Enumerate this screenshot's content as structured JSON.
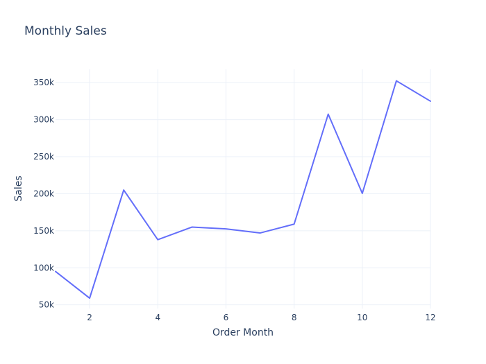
{
  "chart_data": {
    "type": "line",
    "title": "Monthly Sales",
    "xlabel": "Order Month",
    "ylabel": "Sales",
    "xlim": [
      1,
      12
    ],
    "ylim": [
      45000,
      368000
    ],
    "x_ticks": [
      2,
      4,
      6,
      8,
      10,
      12
    ],
    "x_tick_labels": [
      "2",
      "4",
      "6",
      "8",
      "10",
      "12"
    ],
    "y_ticks": [
      50000,
      100000,
      150000,
      200000,
      250000,
      300000,
      350000
    ],
    "y_tick_labels": [
      "50k",
      "100k",
      "150k",
      "200k",
      "250k",
      "300k",
      "350k"
    ],
    "grid": true,
    "legend": false,
    "series": [
      {
        "x": [
          1,
          2,
          3,
          4,
          5,
          6,
          7,
          8,
          9,
          10,
          11,
          12
        ],
        "values": [
          95000,
          59000,
          205000,
          138000,
          155000,
          152500,
          147000,
          159000,
          307500,
          200500,
          352500,
          325000
        ],
        "color": "#636efa"
      }
    ]
  }
}
